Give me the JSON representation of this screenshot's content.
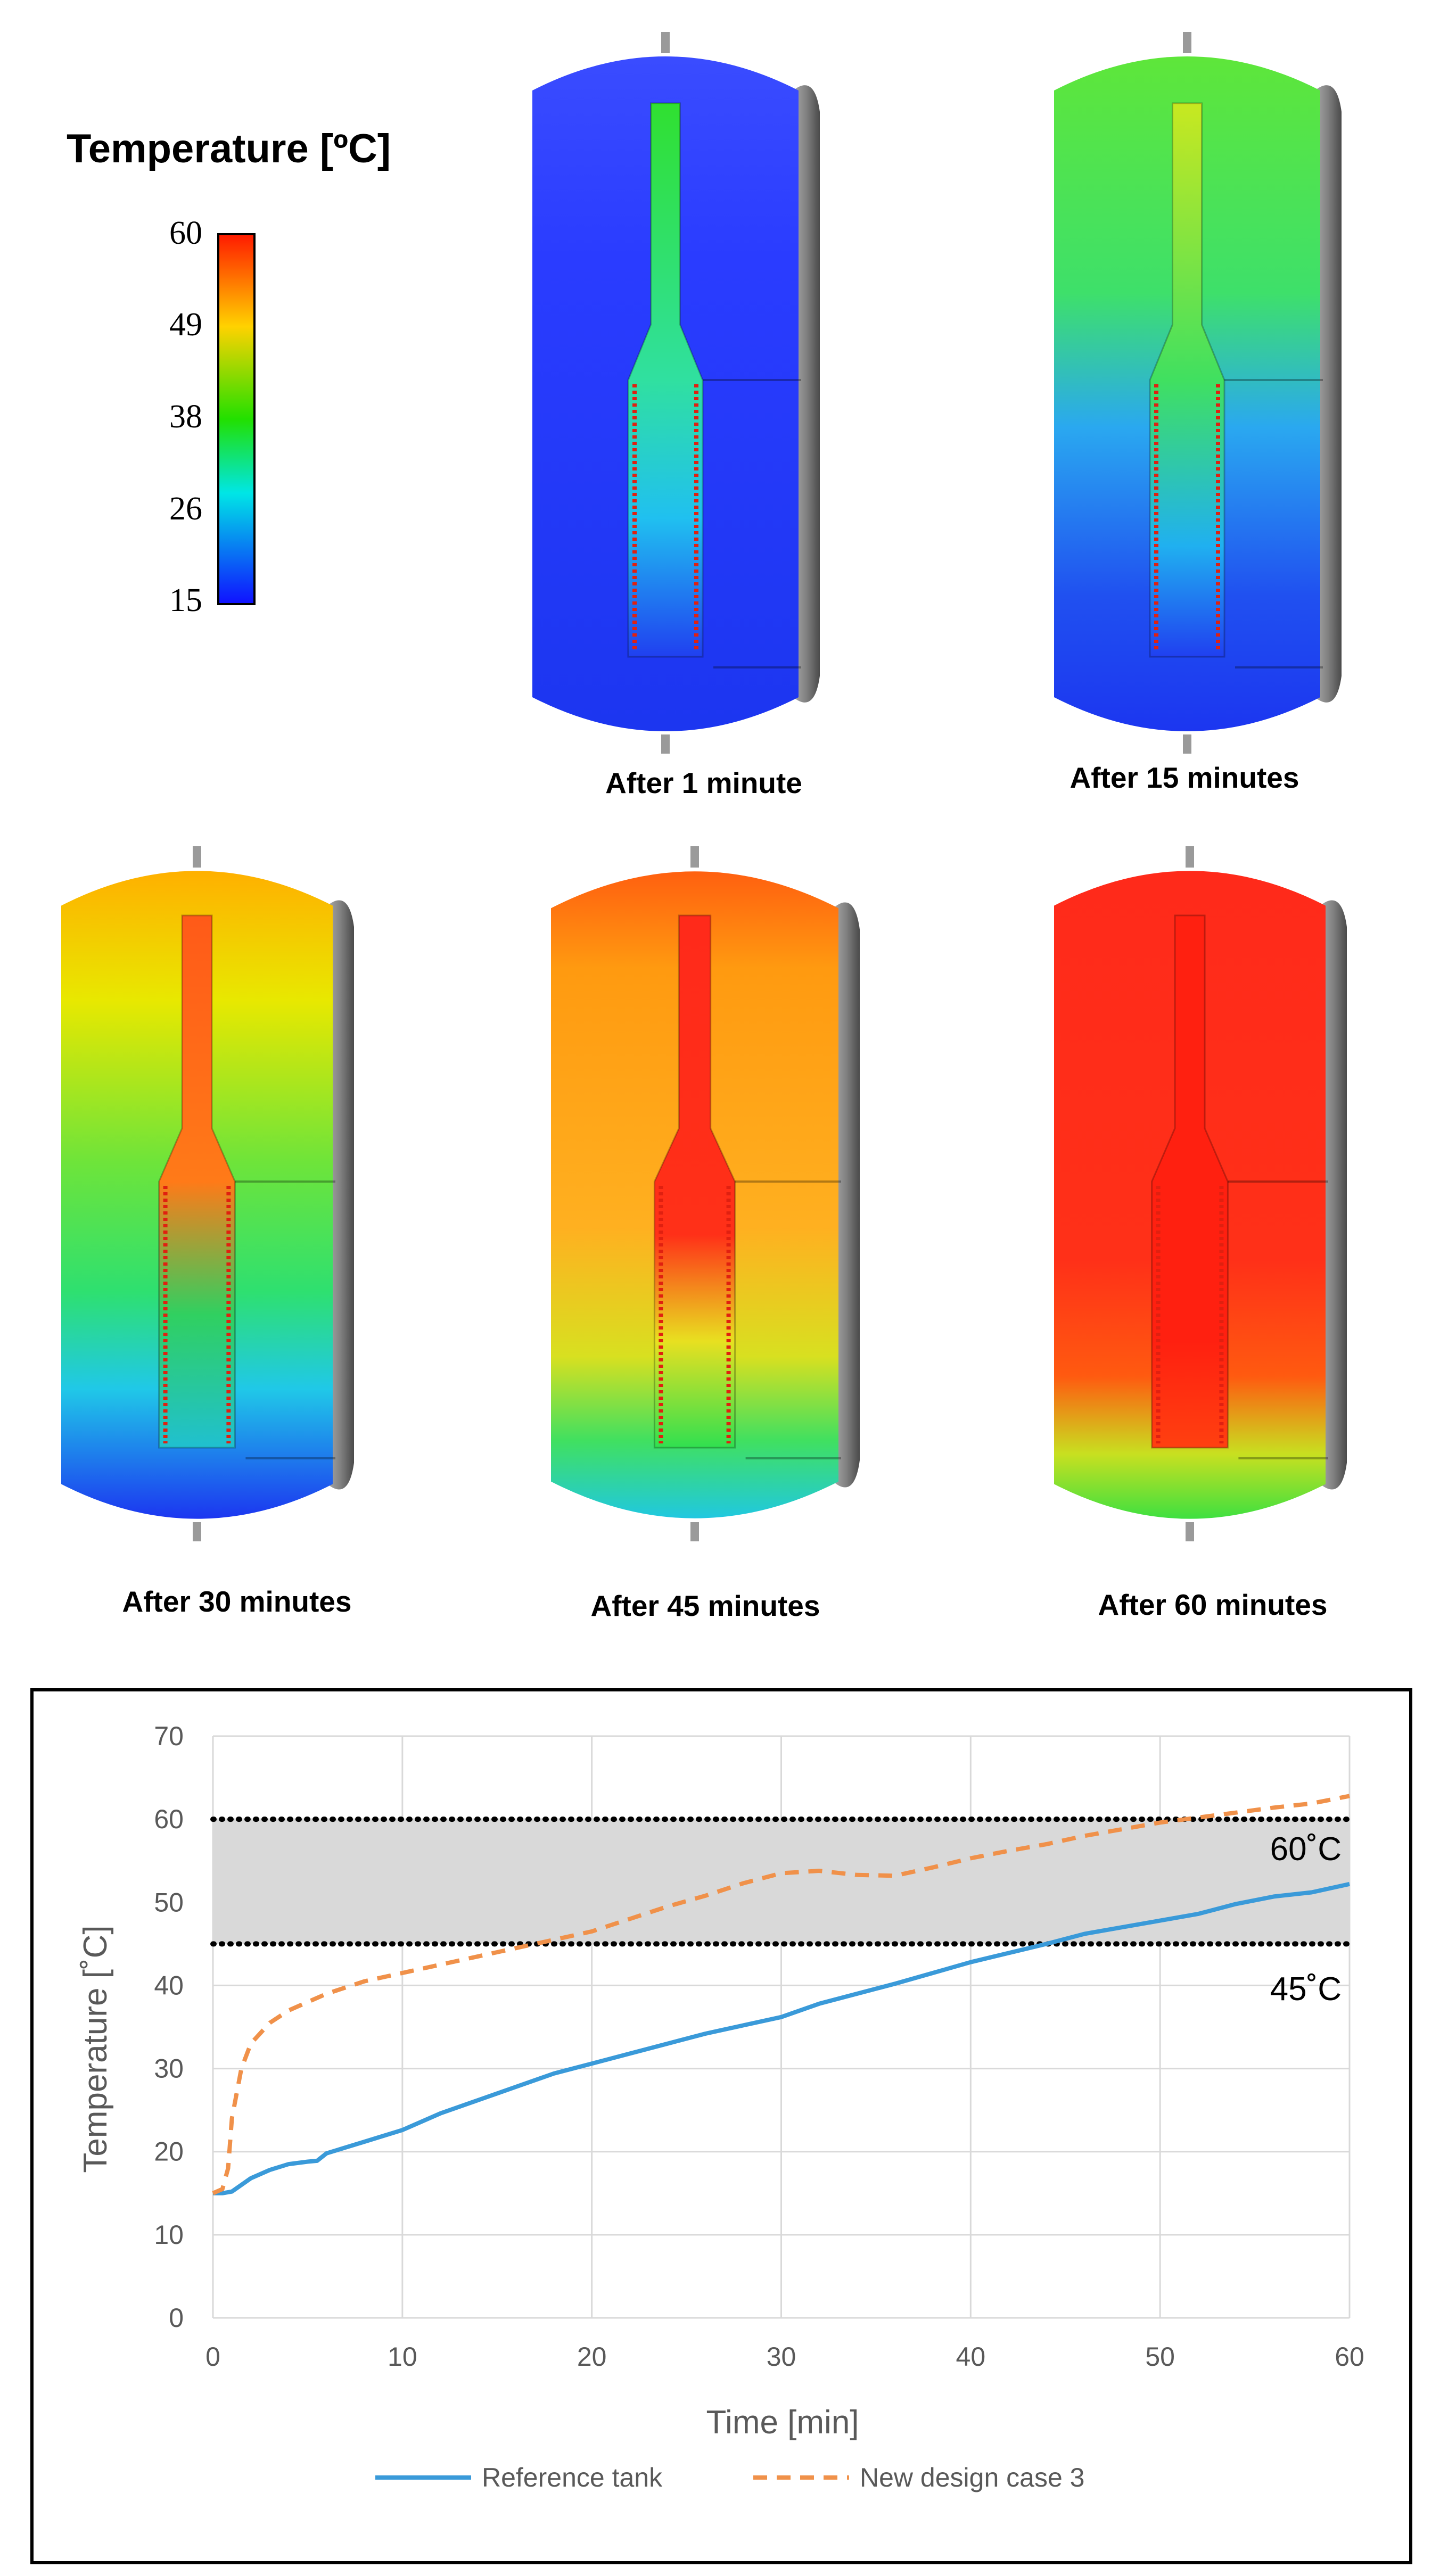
{
  "legend": {
    "title": "Temperature [ºC]",
    "ticks": [
      "60",
      "49",
      "38",
      "26",
      "15"
    ]
  },
  "snapshots": [
    {
      "caption": "After 1 minute",
      "minute": 1
    },
    {
      "caption": "After 15 minutes",
      "minute": 15
    },
    {
      "caption": "After 30 minutes",
      "minute": 30
    },
    {
      "caption": "After 45 minutes",
      "minute": 45
    },
    {
      "caption": "After 60 minutes",
      "minute": 60
    }
  ],
  "chart_data": {
    "type": "line",
    "title": "",
    "xlabel": "Time [min]",
    "ylabel": "Temperature [˚C]",
    "xlim": [
      0,
      60
    ],
    "ylim": [
      0,
      70
    ],
    "x_ticks": [
      "0",
      "10",
      "20",
      "30",
      "40",
      "50",
      "60"
    ],
    "y_ticks": [
      "0",
      "10",
      "20",
      "30",
      "40",
      "50",
      "60",
      "70"
    ],
    "grid": true,
    "legend_position": "bottom",
    "band": {
      "low": 45,
      "high": 60,
      "low_label": "45˚C",
      "high_label": "60˚C",
      "color": "#d9d9d9"
    },
    "series": [
      {
        "name": "Reference tank",
        "color": "#3a9ad9",
        "dash": "solid",
        "x": [
          0,
          0.5,
          1,
          1.5,
          2,
          3,
          4,
          5,
          5.5,
          6,
          8,
          10,
          12,
          14,
          16,
          18,
          20,
          22,
          24,
          26,
          28,
          30,
          32,
          34,
          36,
          38,
          40,
          42,
          44,
          46,
          48,
          50,
          52,
          54,
          56,
          58,
          60
        ],
        "y": [
          15,
          15,
          15.2,
          16,
          16.8,
          17.8,
          18.5,
          18.8,
          18.9,
          19.8,
          21.2,
          22.6,
          24.6,
          26.2,
          27.8,
          29.4,
          30.6,
          31.8,
          33.0,
          34.2,
          35.2,
          36.2,
          37.8,
          39.0,
          40.2,
          41.5,
          42.8,
          43.9,
          45.0,
          46.2,
          47.0,
          47.8,
          48.6,
          49.8,
          50.7,
          51.2,
          52.2
        ]
      },
      {
        "name": "New design case 3",
        "color": "#f0914a",
        "dash": "dashed",
        "x": [
          0,
          0.5,
          0.8,
          1,
          1.5,
          2,
          3,
          4,
          6,
          8,
          10,
          12,
          14,
          16,
          18,
          20,
          22,
          24,
          26,
          28,
          30,
          32,
          34,
          36,
          38,
          40,
          42,
          44,
          46,
          48,
          50,
          52,
          54,
          56,
          58,
          60
        ],
        "y": [
          15,
          15.5,
          18,
          24,
          30,
          33,
          35.5,
          37,
          39,
          40.5,
          41.5,
          42.5,
          43.5,
          44.5,
          45.5,
          46.5,
          48,
          49.5,
          50.8,
          52.3,
          53.5,
          53.8,
          53.3,
          53.2,
          54.2,
          55.3,
          56.2,
          57.0,
          58.0,
          58.8,
          59.6,
          60.2,
          60.8,
          61.4,
          61.9,
          62.8
        ]
      }
    ]
  },
  "colors": {
    "frame": "#000000",
    "grid": "#d9d9d9",
    "threshold_line": "#000000"
  }
}
